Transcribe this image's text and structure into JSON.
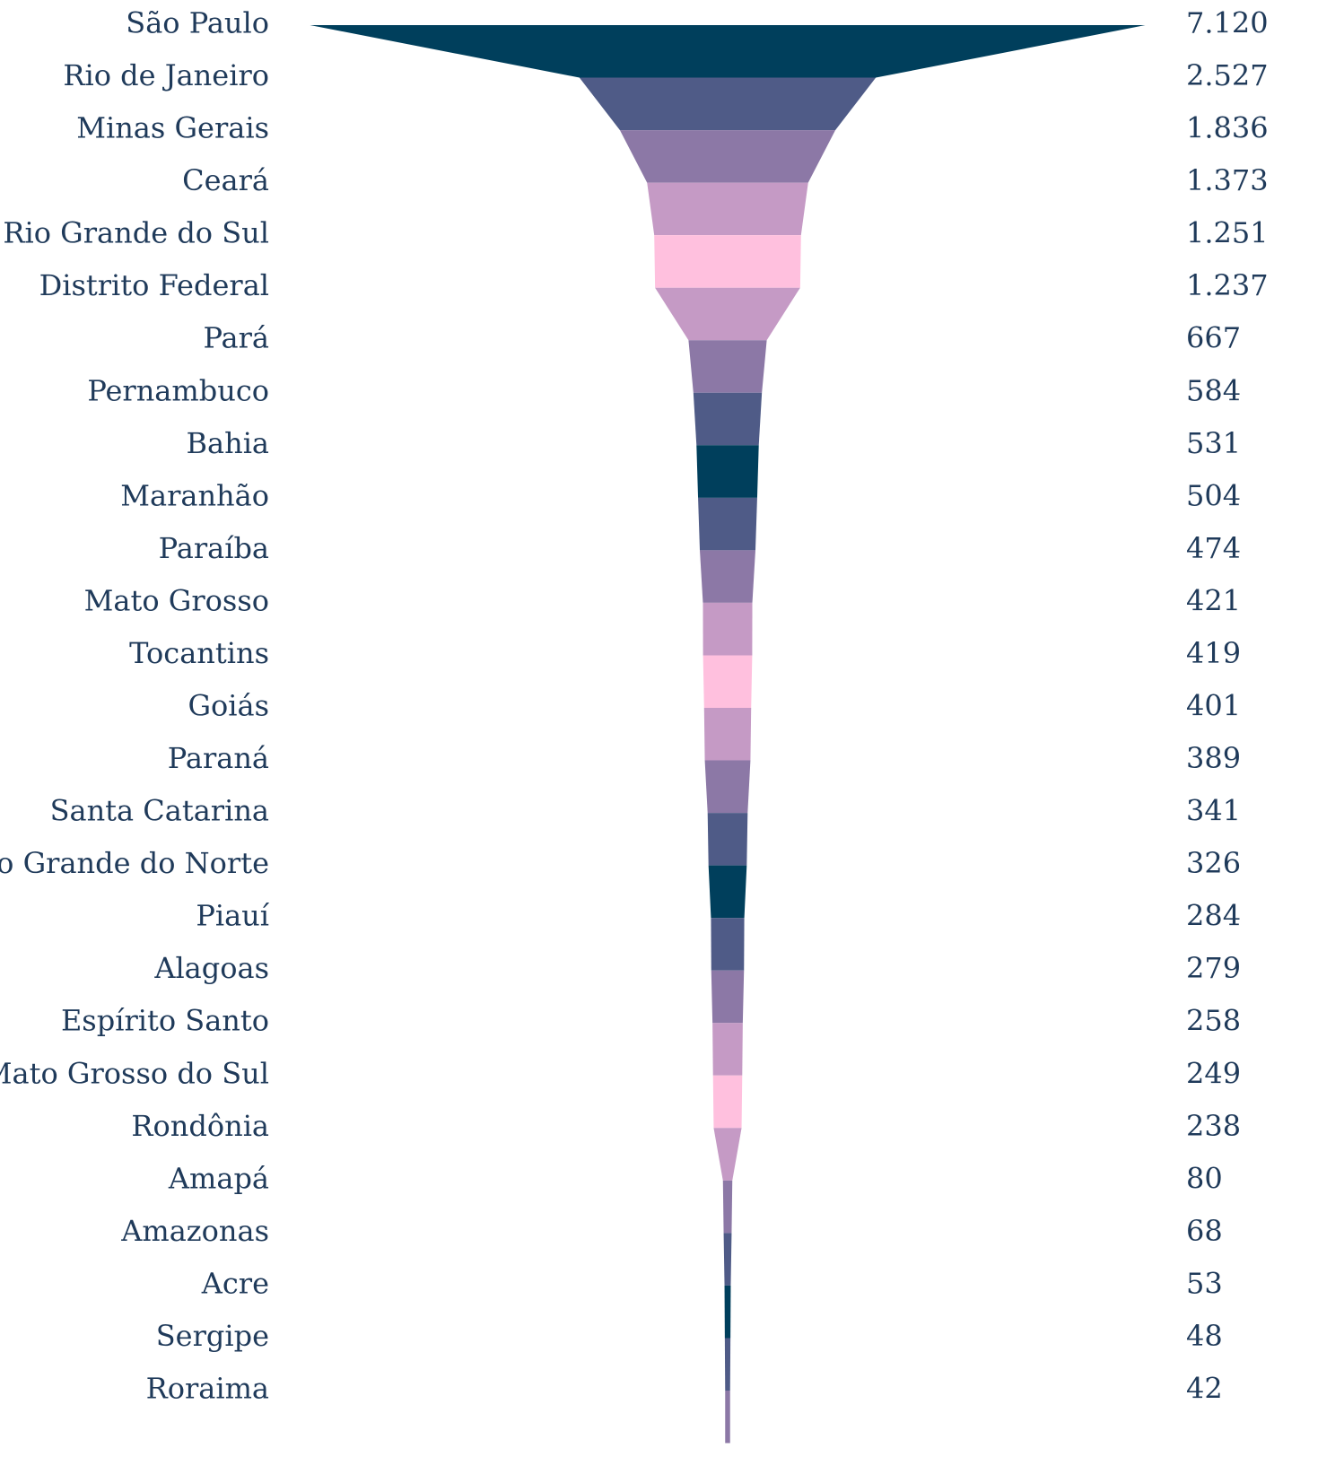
{
  "chart_data": {
    "type": "funnel",
    "categories": [
      "São Paulo",
      "Rio de Janeiro",
      "Minas Gerais",
      "Ceará",
      "Rio Grande do Sul",
      "Distrito Federal",
      "Pará",
      "Pernambuco",
      "Bahia",
      "Maranhão",
      "Paraíba",
      "Mato Grosso",
      "Tocantins",
      "Goiás",
      "Paraná",
      "Santa Catarina",
      "Rio Grande do Norte",
      "Piauí",
      "Alagoas",
      "Espírito Santo",
      "Mato Grosso do Sul",
      "Rondônia",
      "Amapá",
      "Amazonas",
      "Acre",
      "Sergipe",
      "Roraima"
    ],
    "values": [
      7120,
      2527,
      1836,
      1373,
      1251,
      1237,
      667,
      584,
      531,
      504,
      474,
      421,
      419,
      401,
      389,
      341,
      326,
      284,
      279,
      258,
      249,
      238,
      80,
      68,
      53,
      48,
      42
    ],
    "value_labels": [
      "7.120",
      "2.527",
      "1.836",
      "1.373",
      "1.251",
      "1.237",
      "667",
      "584",
      "531",
      "504",
      "474",
      "421",
      "419",
      "401",
      "389",
      "341",
      "326",
      "284",
      "279",
      "258",
      "249",
      "238",
      "80",
      "68",
      "53",
      "48",
      "42"
    ],
    "colors": [
      "#003f5c",
      "#4f5b87",
      "#8c78a6",
      "#c59ac5",
      "#ffc0de",
      "#c59ac5",
      "#8c78a6",
      "#4f5b87",
      "#003f5c",
      "#4f5b87",
      "#8c78a6",
      "#c59ac5",
      "#ffc0de",
      "#c59ac5",
      "#8c78a6",
      "#4f5b87",
      "#003f5c",
      "#4f5b87",
      "#8c78a6",
      "#c59ac5",
      "#ffc0de",
      "#c59ac5",
      "#8c78a6",
      "#4f5b87",
      "#003f5c",
      "#4f5b87",
      "#8c78a6"
    ]
  }
}
